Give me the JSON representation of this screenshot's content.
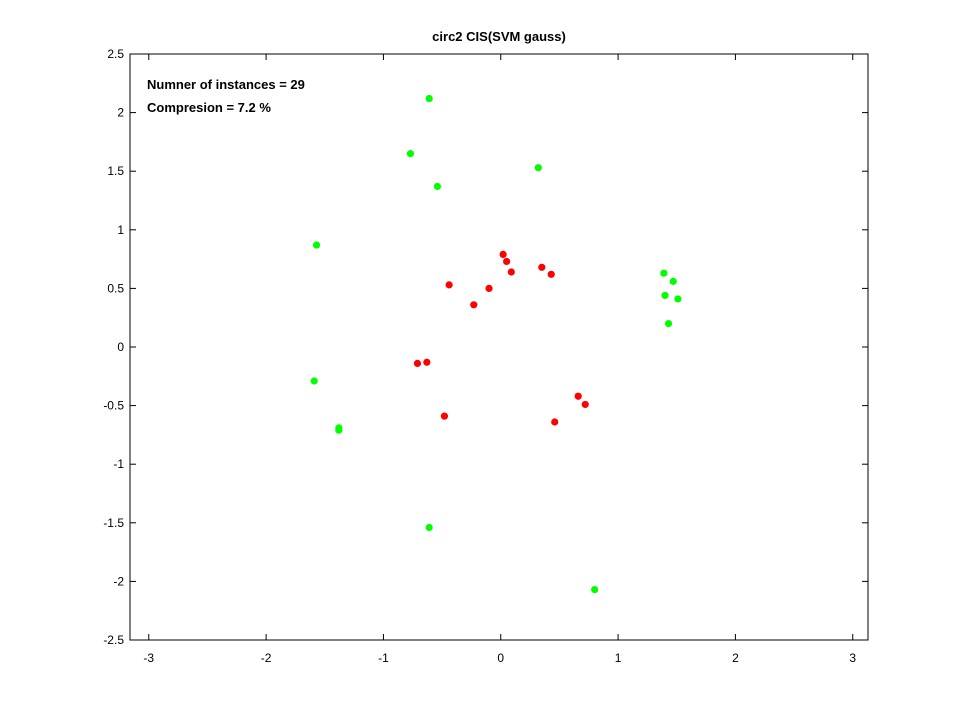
{
  "chart_data": {
    "type": "scatter",
    "title": "circ2 CIS(SVM gauss)",
    "annotations": [
      "Numner of instances = 29",
      "Compresion = 7.2 %"
    ],
    "xlim": [
      -3.16,
      3.13
    ],
    "ylim": [
      -2.5,
      2.5
    ],
    "xticks": [
      -3,
      -2,
      -1,
      0,
      1,
      2,
      3
    ],
    "yticks": [
      -2.5,
      -2,
      -1.5,
      -1,
      -0.5,
      0,
      0.5,
      1,
      1.5,
      2,
      2.5
    ],
    "grid": false,
    "series": [
      {
        "color": "#00ff00",
        "x": [
          -0.61,
          -0.77,
          -0.54,
          0.32,
          -1.57,
          -1.59,
          -1.38,
          -1.38,
          -0.61,
          0.8,
          1.39,
          1.47,
          1.4,
          1.51,
          1.43
        ],
        "values": [
          2.12,
          1.65,
          1.37,
          1.53,
          0.87,
          -0.29,
          -0.69,
          -0.71,
          -1.54,
          -2.07,
          0.63,
          0.56,
          0.44,
          0.41,
          0.2
        ]
      },
      {
        "color": "#ff0000",
        "x": [
          0.02,
          0.05,
          0.09,
          0.35,
          0.43,
          -0.44,
          -0.1,
          -0.23,
          -0.71,
          -0.63,
          -0.48,
          0.66,
          0.72,
          0.46
        ],
        "values": [
          0.79,
          0.73,
          0.64,
          0.68,
          0.62,
          0.53,
          0.5,
          0.36,
          -0.14,
          -0.13,
          -0.59,
          -0.42,
          -0.49,
          -0.64
        ]
      }
    ]
  }
}
